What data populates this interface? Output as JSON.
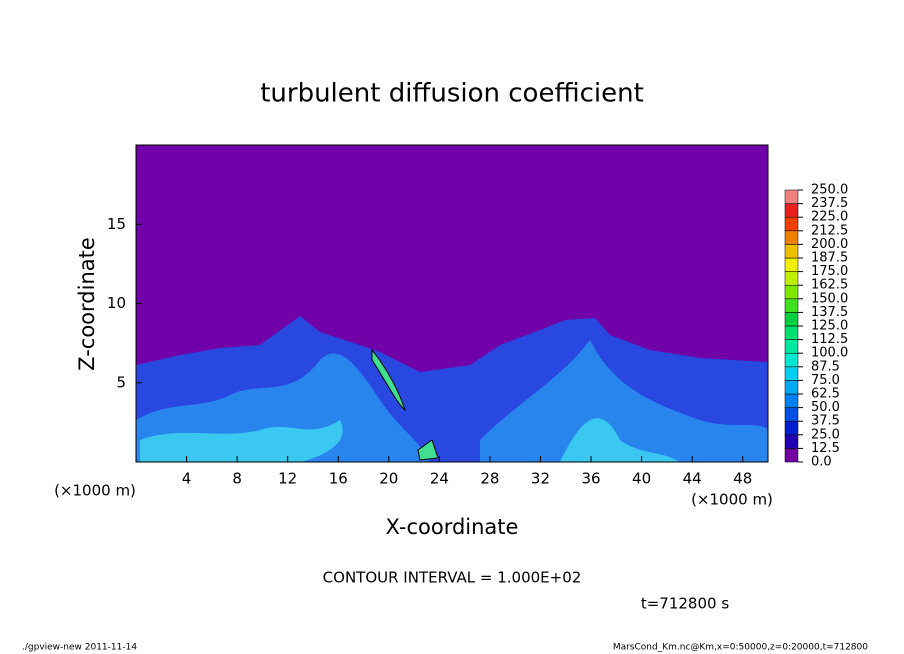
{
  "chart_data": {
    "type": "heatmap",
    "title": "turbulent diffusion coefficient",
    "x_label": "X-coordinate",
    "y_label": "Z-coordinate",
    "x_unit": "(×1000 m)",
    "y_unit": "(×1000 m)",
    "xlim": [
      0,
      50
    ],
    "xticks": [
      4,
      8,
      12,
      16,
      20,
      24,
      28,
      32,
      36,
      40,
      44,
      48
    ],
    "ylim": [
      0,
      20
    ],
    "yticks": [
      5,
      10,
      15
    ],
    "colorbar": {
      "levels": [
        {
          "value": 0,
          "label": "0.0"
        },
        {
          "value": 12.5,
          "label": "12.5"
        },
        {
          "value": 25,
          "label": "25.0"
        },
        {
          "value": 37.5,
          "label": "37.5"
        },
        {
          "value": 50,
          "label": "50.0"
        },
        {
          "value": 62.5,
          "label": "62.5"
        },
        {
          "value": 75,
          "label": "75.0"
        },
        {
          "value": 87.5,
          "label": "87.5"
        },
        {
          "value": 100,
          "label": "100.0"
        },
        {
          "value": 112.5,
          "label": "112.5"
        },
        {
          "value": 125,
          "label": "125.0"
        },
        {
          "value": 137.5,
          "label": "137.5"
        },
        {
          "value": 150,
          "label": "150.0"
        },
        {
          "value": 162.5,
          "label": "162.5"
        },
        {
          "value": 175,
          "label": "175.0"
        },
        {
          "value": 187.5,
          "label": "187.5"
        },
        {
          "value": 200,
          "label": "200.0"
        },
        {
          "value": 212.5,
          "label": "212.5"
        },
        {
          "value": 225,
          "label": "225.0"
        },
        {
          "value": 237.5,
          "label": "237.5"
        },
        {
          "value": 250,
          "label": "250.0"
        }
      ],
      "colors": [
        "#7000a0",
        "#2000b0",
        "#0020d0",
        "#0050e8",
        "#0080f0",
        "#00a8f0",
        "#00d0f0",
        "#00e8d0",
        "#00e8a0",
        "#00e070",
        "#00d040",
        "#40e020",
        "#80e800",
        "#c0f000",
        "#f0f000",
        "#f0c000",
        "#f08000",
        "#f04000",
        "#e82020",
        "#f08080"
      ]
    },
    "contour_note": "CONTOUR INTERVAL = 1.000E+02",
    "time_note": "t=712800 s"
  },
  "footer": {
    "left": "./gpview-new  2011-11-14",
    "right": "MarsCond_Km.nc@Km,x=0:50000,z=0:20000,t=712800"
  }
}
